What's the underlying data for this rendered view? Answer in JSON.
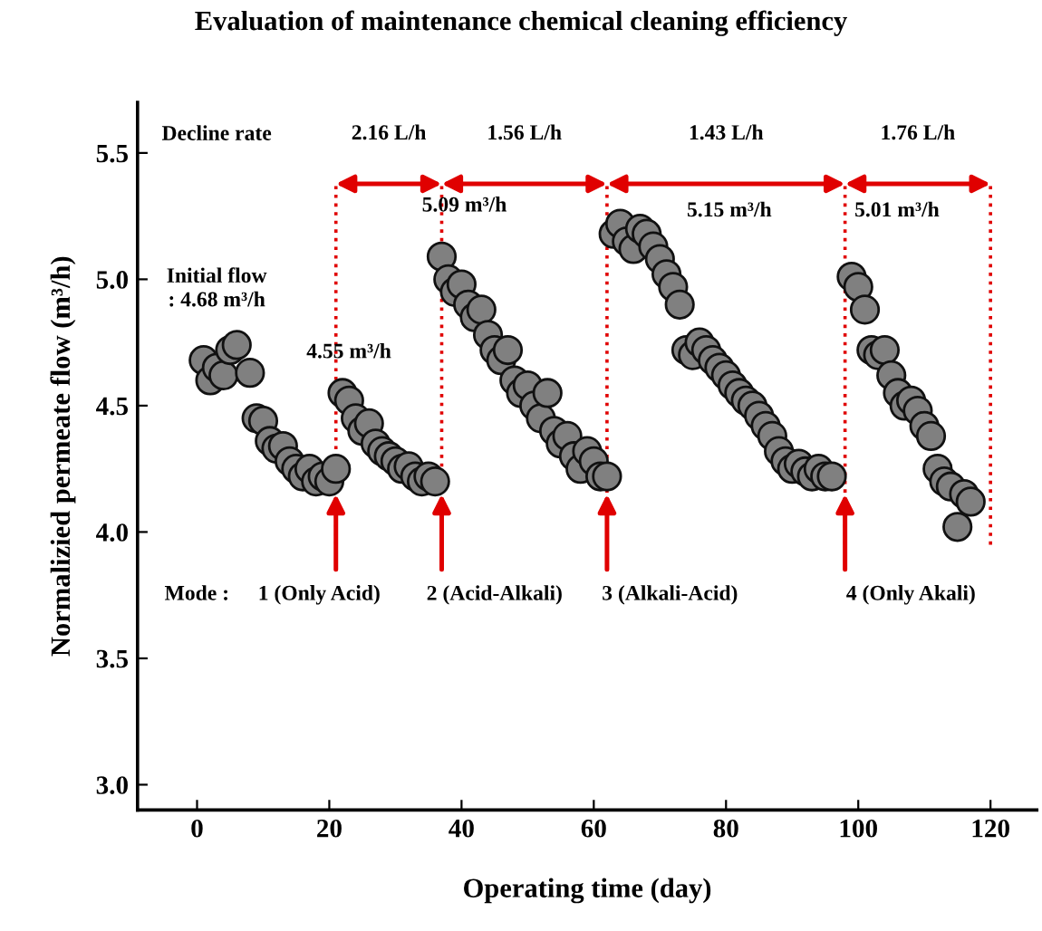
{
  "chart_data": {
    "type": "scatter",
    "title": "Evaluation of maintenance chemical cleaning efficiency",
    "xlabel": "Operating time (day)",
    "ylabel": "Normalizied permeate flow (m³/h)",
    "xlim": [
      -9,
      127
    ],
    "xticks": [
      0,
      20,
      40,
      60,
      80,
      100,
      120
    ],
    "ylim": [
      2.9,
      5.7
    ],
    "yticks": [
      {
        "value": 3,
        "label": "3.0"
      },
      3.5,
      {
        "value": 4,
        "label": "4.0"
      },
      4.5,
      {
        "value": 5,
        "label": "5.0"
      },
      5.5
    ],
    "grid": false,
    "legend": false,
    "marker": "circle",
    "series": [
      {
        "color": "#808080",
        "x": [
          1,
          2,
          3,
          4,
          5,
          6,
          8,
          9,
          10,
          11,
          12,
          13,
          14,
          15,
          16,
          17,
          18,
          19,
          20,
          21,
          22,
          23,
          24,
          25,
          26,
          27,
          28,
          29,
          30,
          31,
          32,
          33,
          34,
          35,
          36,
          37,
          38,
          39,
          40,
          41,
          42,
          43,
          44,
          45,
          46,
          47,
          48,
          49,
          50,
          51,
          52,
          53,
          54,
          55,
          56,
          57,
          58,
          59,
          60,
          61,
          62,
          63,
          64,
          65,
          66,
          67,
          68,
          69,
          70,
          71,
          72,
          73,
          74,
          75,
          76,
          77,
          78,
          79,
          80,
          81,
          82,
          83,
          84,
          85,
          86,
          87,
          88,
          89,
          90,
          91,
          92,
          93,
          94,
          95,
          96,
          99,
          100,
          101,
          102,
          103,
          104,
          105,
          106,
          107,
          108,
          109,
          110,
          111,
          112,
          113,
          114,
          115,
          116,
          117
        ],
        "values": [
          4.68,
          4.6,
          4.65,
          4.62,
          4.72,
          4.74,
          4.63,
          4.45,
          4.44,
          4.36,
          4.33,
          4.34,
          4.28,
          4.25,
          4.22,
          4.25,
          4.2,
          4.22,
          4.2,
          4.25,
          4.55,
          4.52,
          4.45,
          4.4,
          4.43,
          4.35,
          4.32,
          4.3,
          4.28,
          4.25,
          4.26,
          4.22,
          4.2,
          4.22,
          4.2,
          5.09,
          5.0,
          4.95,
          4.98,
          4.9,
          4.85,
          4.88,
          4.78,
          4.72,
          4.68,
          4.72,
          4.6,
          4.55,
          4.58,
          4.5,
          4.45,
          4.55,
          4.4,
          4.35,
          4.38,
          4.3,
          4.25,
          4.32,
          4.28,
          4.22,
          4.22,
          5.18,
          5.22,
          5.15,
          5.12,
          5.2,
          5.18,
          5.13,
          5.08,
          5.02,
          4.97,
          4.9,
          4.72,
          4.7,
          4.75,
          4.72,
          4.68,
          4.65,
          4.62,
          4.58,
          4.55,
          4.52,
          4.5,
          4.46,
          4.42,
          4.38,
          4.32,
          4.28,
          4.25,
          4.27,
          4.24,
          4.22,
          4.25,
          4.22,
          4.22,
          5.01,
          4.97,
          4.88,
          4.72,
          4.7,
          4.72,
          4.62,
          4.55,
          4.5,
          4.52,
          4.48,
          4.42,
          4.38,
          4.25,
          4.2,
          4.18,
          4.02,
          4.15,
          4.12
        ]
      }
    ],
    "ref_lines": [
      {
        "axis": "x",
        "value": 21,
        "color": "#e00000",
        "line_style": "dotted"
      },
      {
        "axis": "x",
        "value": 37,
        "color": "#e00000",
        "line_style": "dotted"
      },
      {
        "axis": "x",
        "value": 62,
        "color": "#e00000",
        "line_style": "dotted"
      },
      {
        "axis": "x",
        "value": 98,
        "color": "#e00000",
        "line_style": "dotted"
      },
      {
        "axis": "x",
        "value": 120,
        "color": "#e00000",
        "line_style": "dotted"
      }
    ],
    "annotations": [
      "Decline rate",
      "2.16 L/h",
      "1.56 L/h",
      "1.43 L/h",
      "1.76 L/h",
      "Initial flow\n: 4.68 m³/h",
      "4.55 m³/h",
      {
        "text": "5.09 m³/h",
        "x": 37,
        "y": 5.09
      },
      "5.15 m³/h",
      {
        "text": "5.01 m³/h",
        "x": 99,
        "y": 5.01
      },
      "Mode :",
      {
        "text": "1 (Only Acid)",
        "x": 21,
        "y": 4.15
      },
      {
        "text": "2 (Acid-Alkali)",
        "x": 37,
        "y": 4.15
      },
      {
        "text": "3 (Alkali-Acid)",
        "x": 62,
        "y": 4.15
      },
      {
        "text": "4 (Only Akali)",
        "x": 98,
        "y": 4.15
      }
    ]
  }
}
